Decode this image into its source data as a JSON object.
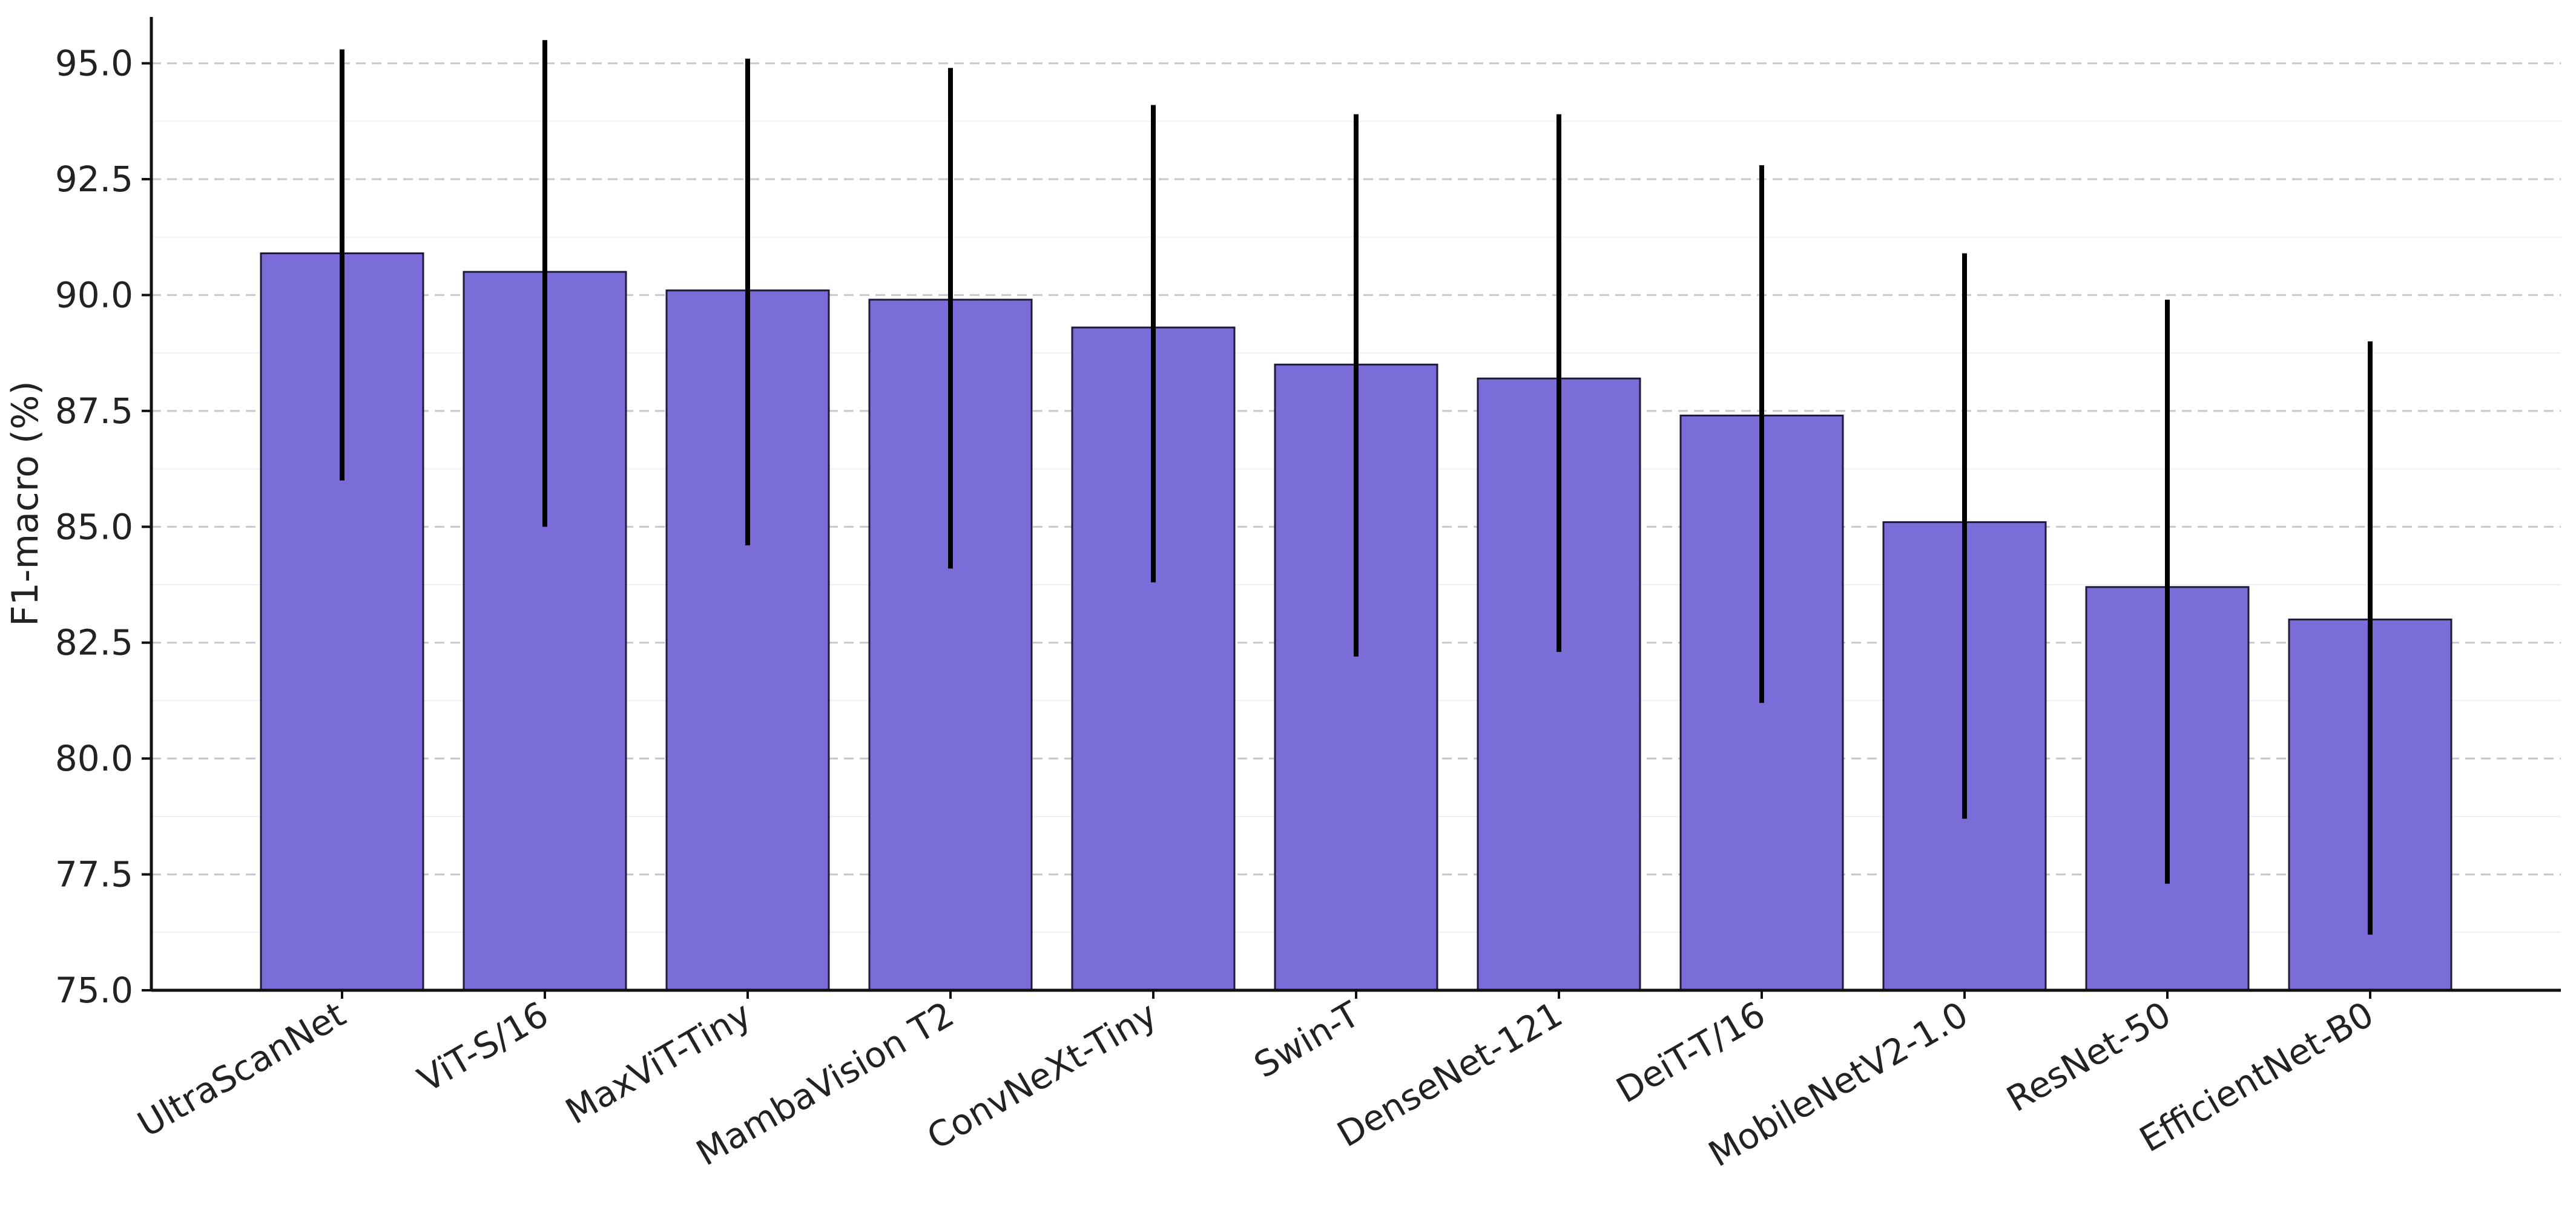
{
  "chart_data": {
    "type": "bar",
    "title": "",
    "xlabel": "",
    "ylabel": "F1-macro (%)",
    "ylim": [
      75.0,
      96.0
    ],
    "yticks": [
      "75.0",
      "77.5",
      "80.0",
      "82.5",
      "85.0",
      "87.5",
      "90.0",
      "92.5",
      "95.0"
    ],
    "grid": true,
    "bar_color": "#7b6dd8",
    "categories": [
      "UltraScanNet",
      "ViT-S/16",
      "MaxViT-Tiny",
      "MambaVision T2",
      "ConvNeXt-Tiny",
      "Swin-T",
      "DenseNet-121",
      "DeiT-T/16",
      "MobileNetV2-1.0",
      "ResNet-50",
      "EfficientNet-B0"
    ],
    "values": [
      90.9,
      90.5,
      90.1,
      89.9,
      89.3,
      88.5,
      88.2,
      87.4,
      85.1,
      83.7,
      83.0
    ],
    "error_low": [
      86.0,
      85.0,
      84.6,
      84.1,
      83.8,
      82.2,
      82.3,
      81.2,
      78.7,
      77.3,
      76.2
    ],
    "error_high": [
      95.3,
      95.5,
      95.1,
      94.9,
      94.1,
      93.9,
      93.9,
      92.8,
      90.9,
      89.9,
      89.0
    ]
  }
}
